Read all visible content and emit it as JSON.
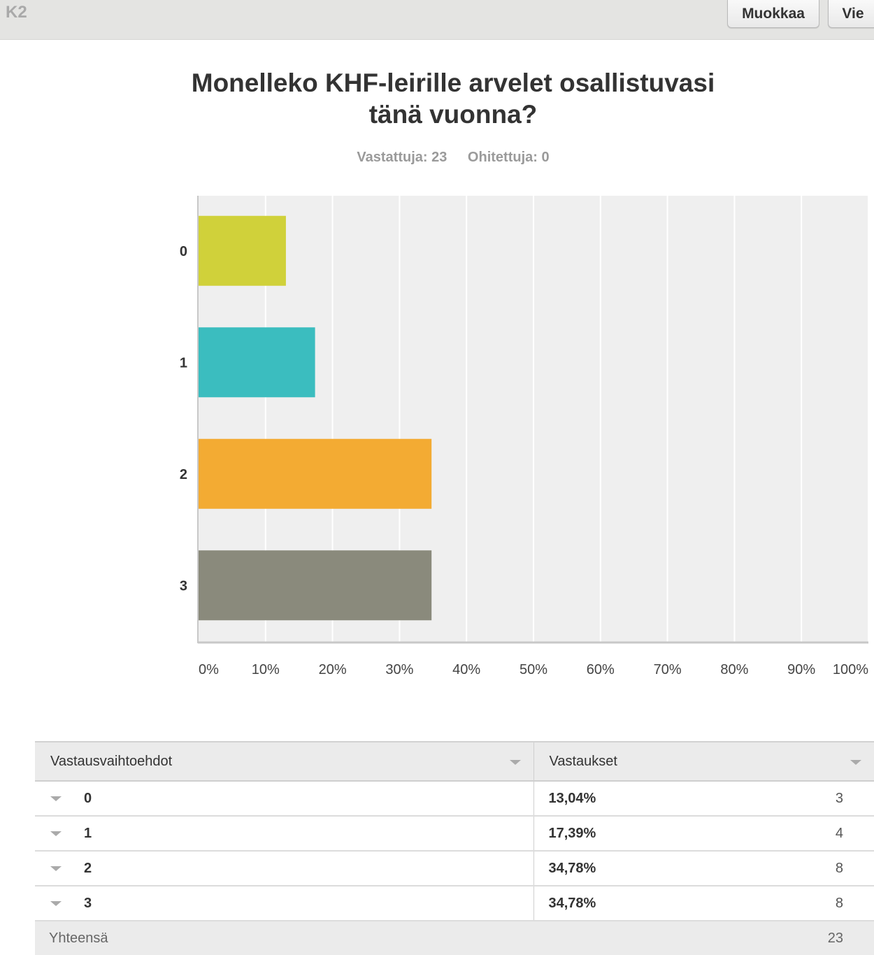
{
  "header": {
    "question_id": "K2",
    "edit_label": "Muokkaa",
    "export_label": "Vie"
  },
  "question": {
    "title_line1": "Monelleko KHF-leirille arvelet osallistuvasi",
    "title_line2": "tänä vuonna?",
    "answered": "Vastattuja: 23",
    "skipped": "Ohitettuja: 0"
  },
  "chart_data": {
    "type": "bar",
    "orientation": "horizontal",
    "categories": [
      "0",
      "1",
      "2",
      "3"
    ],
    "values": [
      13.04,
      17.39,
      34.78,
      34.78
    ],
    "colors": [
      "#d0d13a",
      "#3bbdbf",
      "#f3ab33",
      "#8a8a7c"
    ],
    "xlim": [
      0,
      100
    ],
    "xticks": [
      "0%",
      "10%",
      "20%",
      "30%",
      "40%",
      "50%",
      "60%",
      "70%",
      "80%",
      "90%",
      "100%"
    ],
    "title": "Monelleko KHF-leirille arvelet osallistuvasi tänä vuonna?",
    "grid": true,
    "plot_background": "#efefef"
  },
  "table": {
    "col_option": "Vastausvaihtoehdot",
    "col_responses": "Vastaukset",
    "rows": [
      {
        "option": "0",
        "percent": "13,04%",
        "count": "3"
      },
      {
        "option": "1",
        "percent": "17,39%",
        "count": "4"
      },
      {
        "option": "2",
        "percent": "34,78%",
        "count": "8"
      },
      {
        "option": "3",
        "percent": "34,78%",
        "count": "8"
      }
    ],
    "total_label": "Yhteensä",
    "total_count": "23"
  }
}
